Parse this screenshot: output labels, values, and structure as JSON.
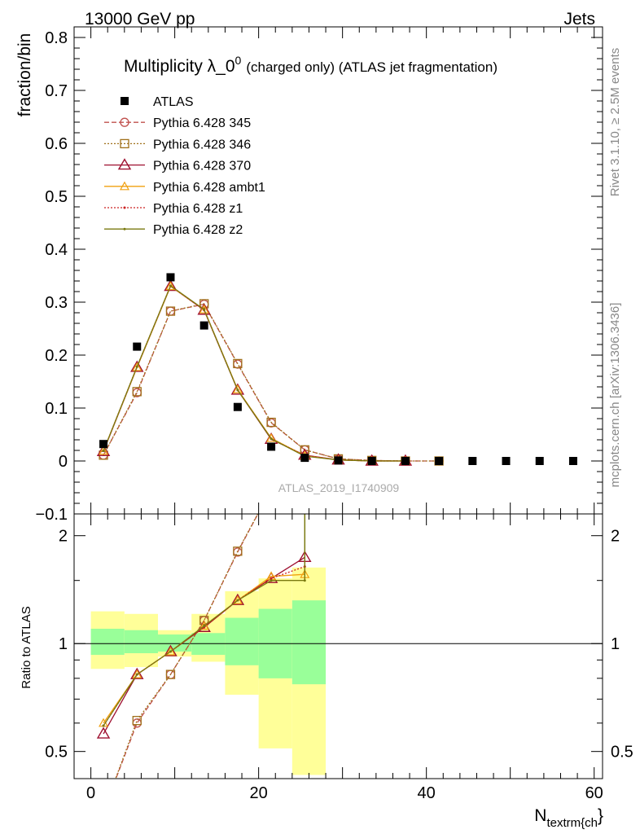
{
  "header": {
    "left": "13000 GeV pp",
    "right": "Jets"
  },
  "side_labels": {
    "top": "Rivet 3.1.10, ≥ 2.5M events",
    "bottom": "mcplots.cern.ch [arXiv:1306.3436]"
  },
  "chart_data": [
    {
      "type": "scatter",
      "title_main": "Multiplicity λ_0",
      "title_sup": "0",
      "title_note": "(charged only) (ATLAS jet fragmentation)",
      "ylabel": "fraction/bin",
      "xlim": [
        -2,
        61
      ],
      "ylim": [
        -0.1,
        0.82
      ],
      "yticks": [
        -0.1,
        0,
        0.1,
        0.2,
        0.3,
        0.4,
        0.5,
        0.6,
        0.7,
        0.8
      ],
      "ytick_labels": [
        "−0.1",
        "0",
        "0.1",
        "0.2",
        "0.3",
        "0.4",
        "0.5",
        "0.6",
        "0.7",
        "0.8"
      ],
      "watermark": "ATLAS_2019_I1740909",
      "legend_position": "top-left",
      "data": {
        "name": "ATLAS",
        "x": [
          1.5,
          5.5,
          9.5,
          13.5,
          17.5,
          21.5,
          25.5,
          29.5,
          33.5,
          37.5,
          41.5,
          45.5,
          49.5,
          53.5,
          57.5
        ],
        "y": [
          0.032,
          0.216,
          0.347,
          0.256,
          0.102,
          0.027,
          0.006,
          0.001,
          0.0,
          0.0,
          0.0,
          0.0,
          0.0,
          0.0,
          0.0
        ]
      },
      "series": [
        {
          "name": "Pythia 6.428 345",
          "color": "#c0504d",
          "dash": "6,3",
          "marker": "circle",
          "x": [
            1.5,
            5.5,
            9.5,
            13.5,
            17.5,
            21.5,
            25.5,
            29.5,
            33.5,
            37.5,
            41.5
          ],
          "y": [
            0.011,
            0.129,
            0.283,
            0.296,
            0.183,
            0.072,
            0.021,
            0.004,
            0.001,
            0.0,
            0.0
          ]
        },
        {
          "name": "Pythia 6.428 346",
          "color": "#a0701a",
          "dash": "2,2",
          "marker": "square",
          "x": [
            1.5,
            5.5,
            9.5,
            13.5,
            17.5,
            21.5,
            25.5,
            29.5,
            33.5,
            37.5,
            41.5
          ],
          "y": [
            0.011,
            0.131,
            0.283,
            0.297,
            0.184,
            0.073,
            0.021,
            0.004,
            0.001,
            0.0,
            0.0
          ]
        },
        {
          "name": "Pythia 6.428 370",
          "color": "#9e1030",
          "dash": "",
          "marker": "triangle",
          "x": [
            1.5,
            5.5,
            9.5,
            13.5,
            17.5,
            21.5,
            25.5,
            29.5,
            33.5,
            37.5
          ],
          "y": [
            0.018,
            0.177,
            0.33,
            0.285,
            0.134,
            0.041,
            0.011,
            0.002,
            0.0,
            0.0
          ]
        },
        {
          "name": "Pythia 6.428 ambt1",
          "color": "#f0a010",
          "dash": "",
          "marker": "triangle-small",
          "x": [
            1.5,
            5.5,
            9.5,
            13.5,
            17.5,
            21.5,
            25.5,
            29.5,
            33.5,
            37.5
          ],
          "y": [
            0.019,
            0.177,
            0.33,
            0.286,
            0.135,
            0.043,
            0.01,
            0.002,
            0.0,
            0.0
          ]
        },
        {
          "name": "Pythia 6.428 z1",
          "color": "#cc2020",
          "dash": "2,2",
          "marker": "dot",
          "x": [
            1.5,
            5.5,
            9.5,
            13.5,
            17.5,
            21.5,
            25.5,
            29.5,
            33.5,
            37.5
          ],
          "y": [
            0.019,
            0.178,
            0.331,
            0.285,
            0.134,
            0.042,
            0.01,
            0.002,
            0.0,
            0.0
          ]
        },
        {
          "name": "Pythia 6.428 z2",
          "color": "#7a7a10",
          "dash": "",
          "marker": "dot",
          "x": [
            1.5,
            5.5,
            9.5,
            13.5,
            17.5,
            21.5,
            25.5,
            29.5,
            33.5,
            37.5
          ],
          "y": [
            0.019,
            0.178,
            0.331,
            0.286,
            0.134,
            0.042,
            0.009,
            0.002,
            0.0,
            0.0
          ]
        }
      ]
    },
    {
      "type": "line",
      "ylabel": "Ratio to ATLAS",
      "xlabel_main": "N",
      "xlabel_sub": "textrm{ch",
      "xlabel_tail": "}",
      "xlim": [
        -2,
        61
      ],
      "ylim": [
        0.42,
        2.3
      ],
      "yscale": "log",
      "yticks": [
        0.5,
        1,
        2
      ],
      "ytick_labels": [
        "0.5",
        "1",
        "2"
      ],
      "xticks": [
        0,
        20,
        40,
        60
      ],
      "xtick_labels": [
        "0",
        "20",
        "40",
        "60"
      ],
      "reference": 1,
      "bands": {
        "edges": [
          0,
          4,
          8,
          12,
          16,
          20,
          24,
          28
        ],
        "inner_lo": [
          0.93,
          0.94,
          0.95,
          0.93,
          0.87,
          0.8,
          0.77
        ],
        "inner_hi": [
          1.1,
          1.09,
          1.06,
          1.07,
          1.18,
          1.25,
          1.32
        ],
        "outer_lo": [
          0.85,
          0.86,
          0.92,
          0.89,
          0.72,
          0.51,
          0.43
        ],
        "outer_hi": [
          1.23,
          1.21,
          1.09,
          1.21,
          1.4,
          1.52,
          1.63
        ]
      },
      "ratio_series": [
        {
          "name": "Pythia 6.428 345",
          "x": [
            1.5,
            5.5,
            9.5,
            13.5,
            17.5,
            21.5,
            25.5
          ],
          "y": [
            0.34,
            0.6,
            0.82,
            1.16,
            1.8,
            2.7,
            3.6
          ]
        },
        {
          "name": "Pythia 6.428 346",
          "x": [
            1.5,
            5.5,
            9.5,
            13.5,
            17.5,
            21.5,
            25.5
          ],
          "y": [
            0.34,
            0.61,
            0.82,
            1.16,
            1.81,
            2.7,
            3.6
          ]
        },
        {
          "name": "Pythia 6.428 370",
          "x": [
            1.5,
            5.5,
            9.5,
            13.5,
            17.5,
            21.5,
            25.5
          ],
          "y": [
            0.56,
            0.82,
            0.95,
            1.11,
            1.32,
            1.52,
            1.74
          ]
        },
        {
          "name": "Pythia 6.428 ambt1",
          "x": [
            1.5,
            5.5,
            9.5,
            13.5,
            17.5,
            21.5,
            25.5
          ],
          "y": [
            0.6,
            0.82,
            0.95,
            1.12,
            1.32,
            1.54,
            1.56
          ]
        },
        {
          "name": "Pythia 6.428 z1",
          "x": [
            1.5,
            5.5,
            9.5,
            13.5,
            17.5,
            21.5,
            25.5
          ],
          "y": [
            0.59,
            0.82,
            0.95,
            1.11,
            1.32,
            1.52,
            1.64
          ]
        },
        {
          "name": "Pythia 6.428 z2",
          "x": [
            1.5,
            5.5,
            9.5,
            13.5,
            17.5,
            21.5,
            25.5
          ],
          "y": [
            0.59,
            0.82,
            0.95,
            1.12,
            1.32,
            1.5,
            1.5
          ]
        }
      ]
    }
  ]
}
